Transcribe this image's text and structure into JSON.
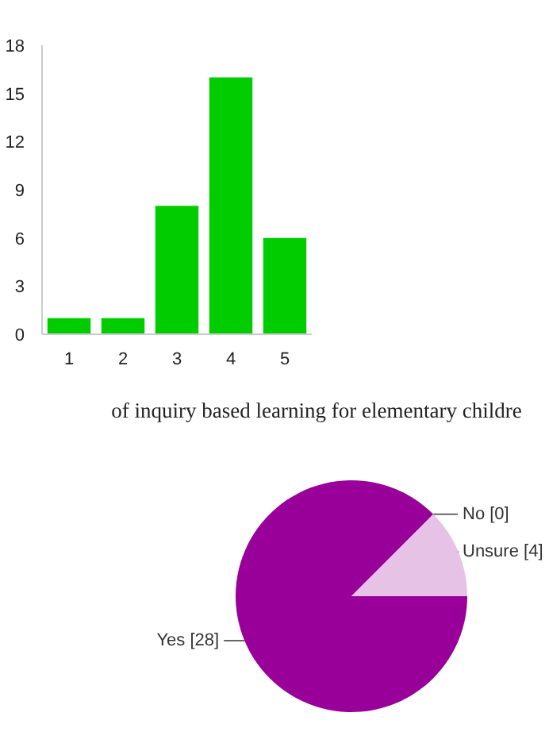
{
  "chart_data": [
    {
      "type": "bar",
      "categories": [
        "1",
        "2",
        "3",
        "4",
        "5"
      ],
      "values": [
        1,
        1,
        8,
        16,
        6
      ],
      "color": "#00cc00",
      "ylim": [
        0,
        18
      ],
      "yticks": [
        0,
        3,
        6,
        9,
        12,
        15,
        18
      ],
      "grid": false
    },
    {
      "type": "pie",
      "title": "of inquiry based learning for elementary childre",
      "categories": [
        "Yes",
        "No",
        "Unsure"
      ],
      "values": [
        28,
        0,
        4
      ],
      "colors": [
        "#990099",
        "#990099",
        "#e6c3e6"
      ],
      "value_labels": [
        "[28]",
        "[0]",
        "[4]"
      ]
    }
  ]
}
